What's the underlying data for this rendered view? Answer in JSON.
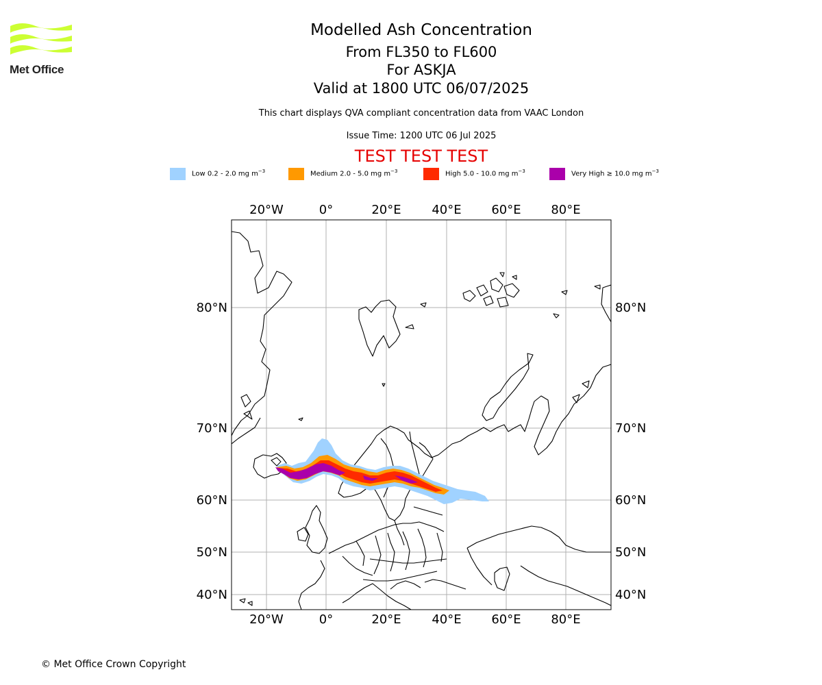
{
  "header": {
    "org_name": "Met Office",
    "title": "Modelled Ash Concentration",
    "levels": "From FL350 to FL600",
    "volcano": "For ASKJA",
    "valid": "Valid at 1800 UTC 06/07/2025",
    "note": "This chart displays QVA compliant concentration data from VAAC London",
    "issue": "Issue Time: 1200 UTC 06 Jul 2025",
    "test_banner": "TEST TEST TEST"
  },
  "legend": [
    {
      "prefix": "Low 0.2 - 2.0 mg m",
      "exp": "−3",
      "color": "#a0d2ff"
    },
    {
      "prefix": "Medium 2.0 - 5.0 mg m",
      "exp": "−3",
      "color": "#ff9900"
    },
    {
      "prefix": "High 5.0 - 10.0 mg m",
      "exp": "−3",
      "color": "#ff2a00"
    },
    {
      "prefix": "Very High  ≥  10.0 mg m",
      "exp": "−3",
      "color": "#aa00aa"
    }
  ],
  "map": {
    "lon_labels": [
      "20°W",
      "0°",
      "20°E",
      "40°E",
      "60°E",
      "80°E"
    ],
    "lon_values": [
      -20,
      0,
      20,
      40,
      60,
      80
    ],
    "lat_labels": [
      "80°N",
      "70°N",
      "60°N",
      "50°N",
      "40°N"
    ],
    "lat_values": [
      80,
      70,
      60,
      50,
      40
    ],
    "gridlines": true,
    "ash_colors": {
      "low": "#a0d2ff",
      "medium": "#ff9900",
      "high": "#ff2a00",
      "very_high": "#aa00aa"
    },
    "ash_plume": {
      "source_lon": -16.8,
      "source_lat": 65.0,
      "centerline": [
        [
          -16,
          65
        ],
        [
          -12,
          63.6
        ],
        [
          -6,
          63.8
        ],
        [
          0,
          64.8
        ],
        [
          6,
          64.4
        ],
        [
          12,
          62.9
        ],
        [
          20,
          63.0
        ],
        [
          28,
          62.5
        ],
        [
          34,
          61.6
        ],
        [
          38,
          61.0
        ]
      ],
      "low_extent_to_lon": 54
    }
  },
  "footer": {
    "copyright": "© Met Office Crown Copyright"
  }
}
